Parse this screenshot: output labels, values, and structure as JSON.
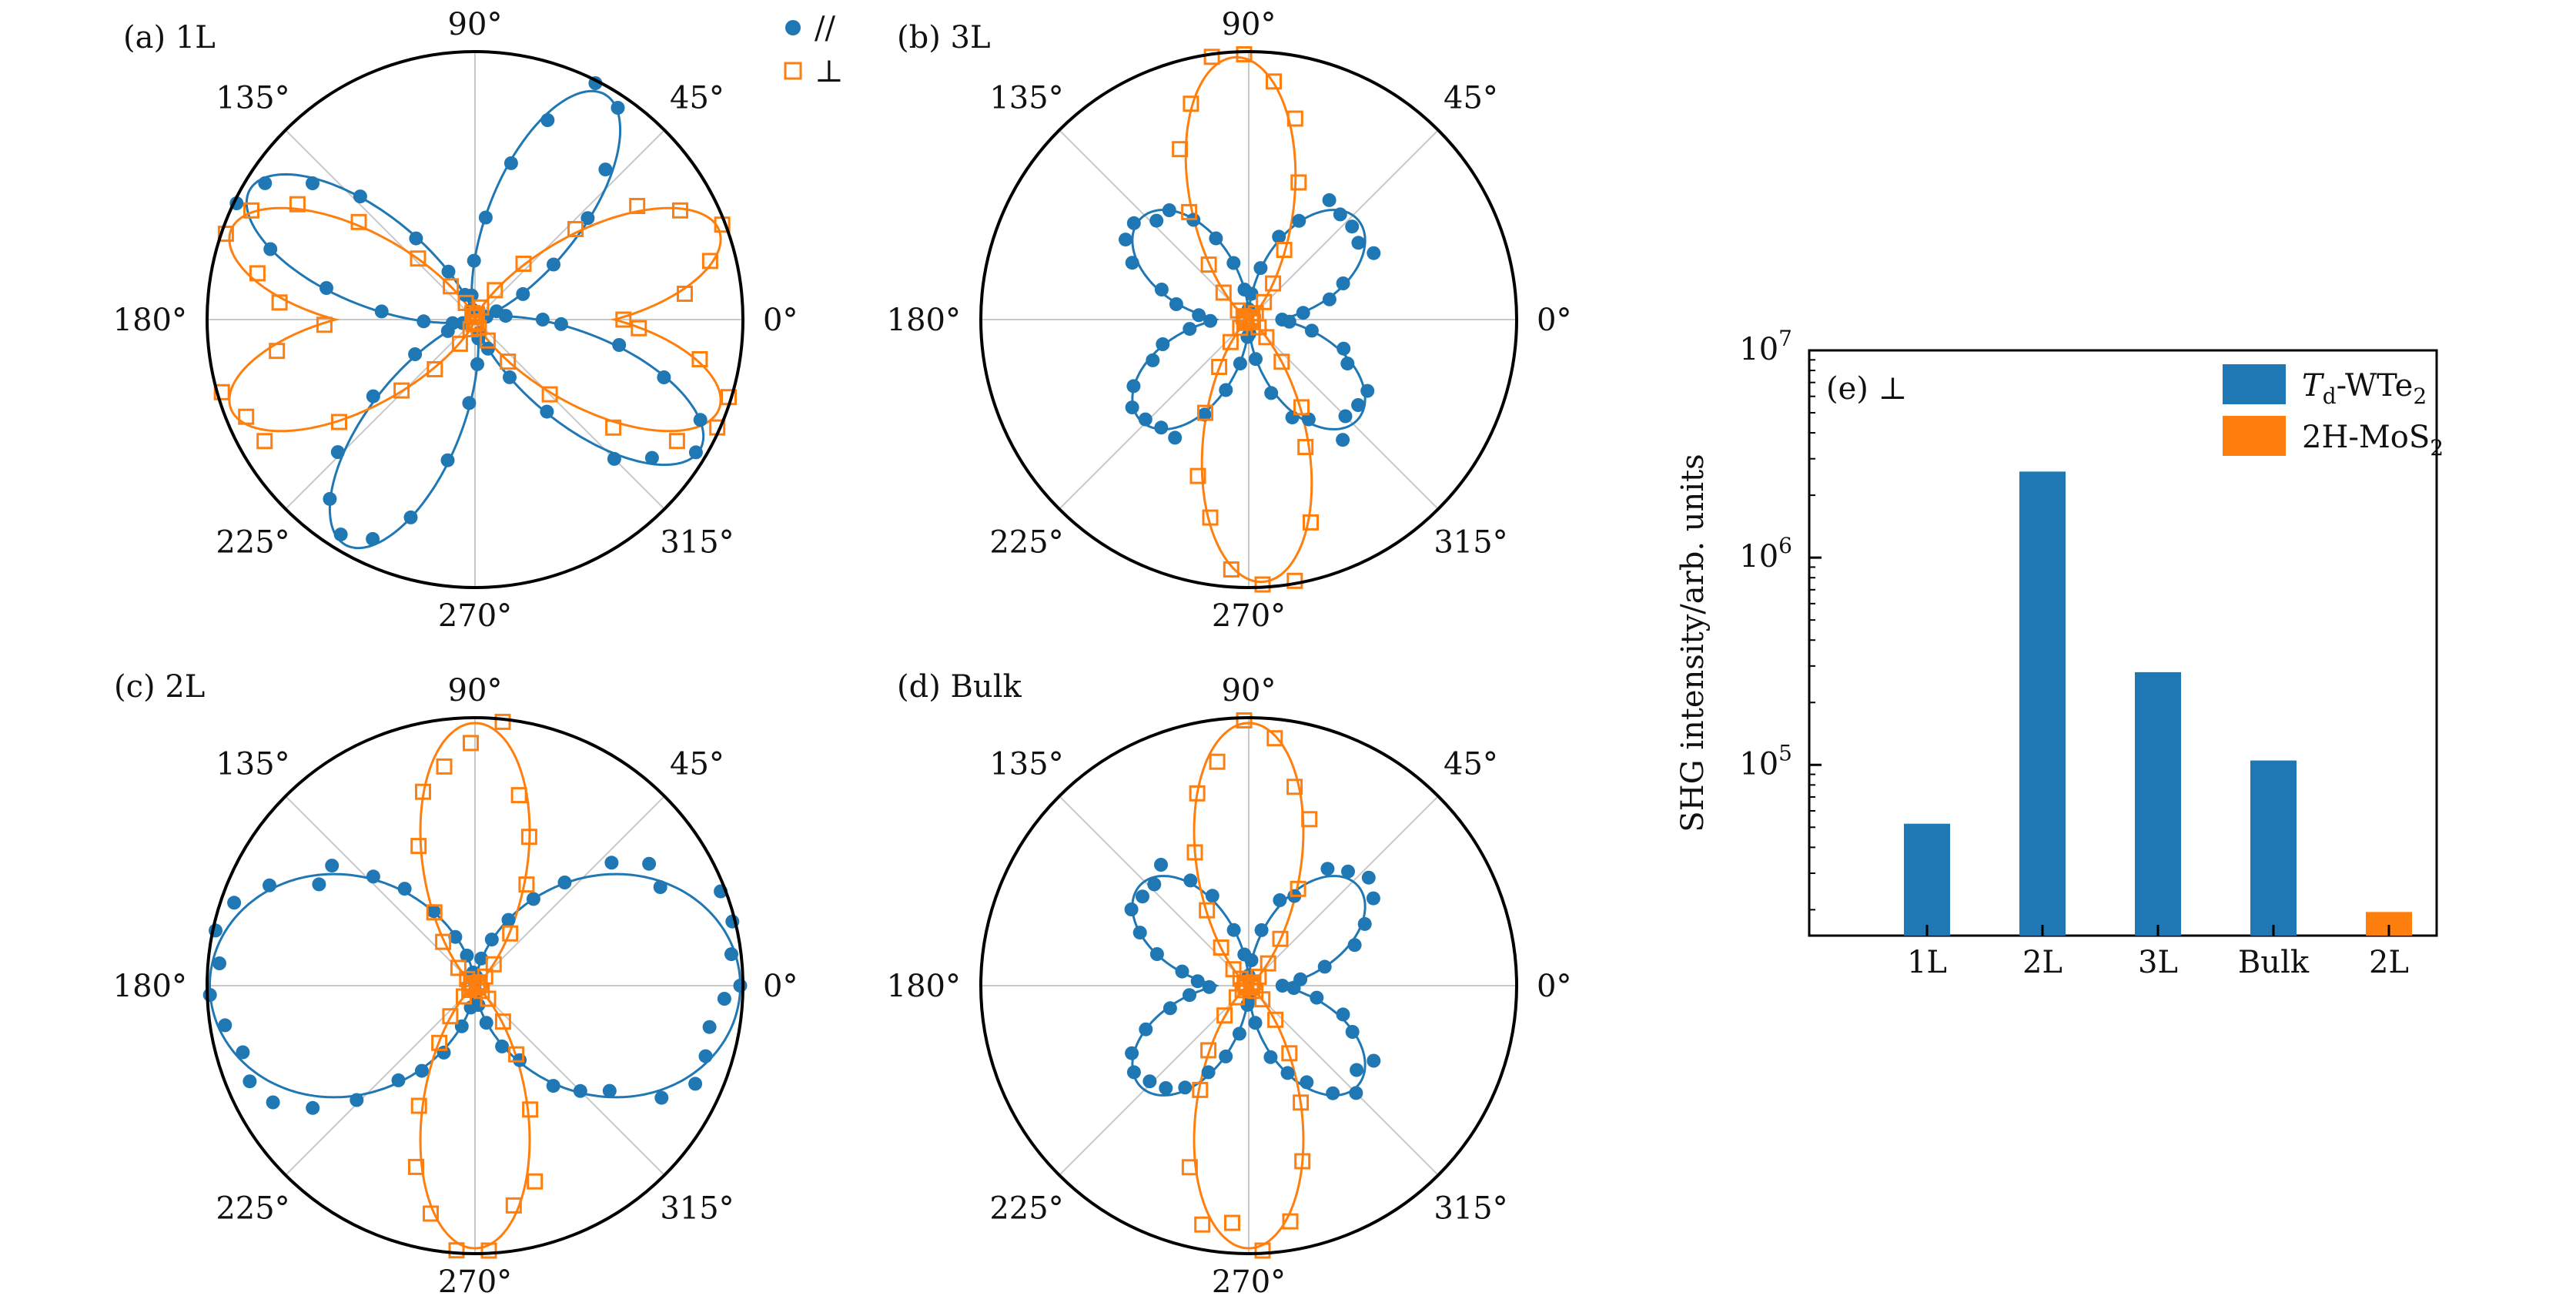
{
  "colors": {
    "parallel": "#1f77b4",
    "perpendicular": "#ff7f0e",
    "grid": "#c8c8c8",
    "frame": "#000000"
  },
  "legend": {
    "parallel": "//",
    "perpendicular": "⊥"
  },
  "angle_labels": [
    "0°",
    "45°",
    "90°",
    "135°",
    "180°",
    "225°",
    "270°",
    "315°"
  ],
  "chart_data": [
    {
      "id": "a",
      "type": "polar",
      "label": "(a) 1L",
      "series": [
        {
          "key": "parallel",
          "marker": "filled-circle",
          "model": {
            "type": "four-lobe",
            "axes_deg": [
              60,
              150
            ]
          }
        },
        {
          "key": "perpendicular",
          "marker": "open-square",
          "model": {
            "type": "four-lobe",
            "axes_deg": [
              20,
              160
            ]
          }
        }
      ]
    },
    {
      "id": "b",
      "type": "polar",
      "label": "(b) 3L",
      "series": [
        {
          "key": "parallel",
          "marker": "filled-circle",
          "model": {
            "type": "butterfly"
          }
        },
        {
          "key": "perpendicular",
          "marker": "open-square",
          "model": {
            "type": "two-lobe",
            "axis_deg": 93
          }
        }
      ]
    },
    {
      "id": "c",
      "type": "polar",
      "label": "(c) 2L",
      "series": [
        {
          "key": "parallel",
          "marker": "filled-circle",
          "model": {
            "type": "two-lobe-wide",
            "axis_deg": 0
          }
        },
        {
          "key": "perpendicular",
          "marker": "open-square",
          "model": {
            "type": "two-lobe",
            "axis_deg": 90
          }
        }
      ]
    },
    {
      "id": "d",
      "type": "polar",
      "label": "(d) Bulk",
      "series": [
        {
          "key": "parallel",
          "marker": "filled-circle",
          "model": {
            "type": "butterfly"
          }
        },
        {
          "key": "perpendicular",
          "marker": "open-square",
          "model": {
            "type": "two-lobe",
            "axis_deg": 90
          }
        }
      ]
    },
    {
      "id": "e",
      "type": "bar",
      "label": "(e) ⊥",
      "ylabel": "SHG intensity/arb. units",
      "yscale": "log",
      "ylim": [
        15000,
        10000000
      ],
      "y_ticks": [
        {
          "value": 100000,
          "base": "10",
          "exp": "5"
        },
        {
          "value": 1000000,
          "base": "10",
          "exp": "6"
        },
        {
          "value": 10000000,
          "base": "10",
          "exp": "7"
        }
      ],
      "categories": [
        "1L",
        "2L",
        "3L",
        "Bulk",
        "2L"
      ],
      "values": [
        52000,
        2600000,
        280000,
        105000,
        19500
      ],
      "bar_colors": [
        "#1f77b4",
        "#1f77b4",
        "#1f77b4",
        "#1f77b4",
        "#ff7f0e"
      ],
      "legend": [
        {
          "main": "T",
          "sub": "d",
          "rest": "-WTe",
          "sub2": "2",
          "color": "#1f77b4"
        },
        {
          "main": "2H-MoS",
          "sub": "2",
          "rest": "",
          "sub2": "",
          "color": "#ff7f0e"
        }
      ]
    }
  ]
}
